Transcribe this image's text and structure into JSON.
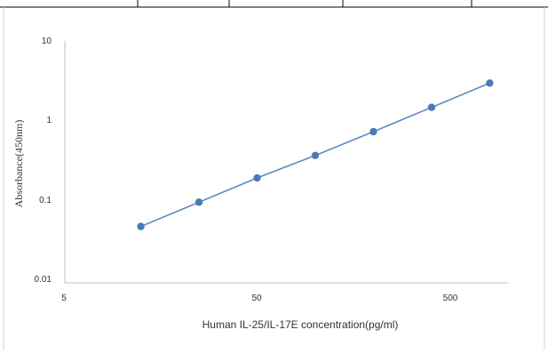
{
  "chart_data": {
    "type": "scatter",
    "xlabel": "Human IL-25/IL-17E concentration(pg/ml)",
    "ylabel": "Absorbance(450nm)",
    "x_scale": "log",
    "y_scale": "log",
    "xlim": [
      5,
      1000
    ],
    "ylim": [
      0.01,
      10
    ],
    "x_ticks": [
      "5",
      "50",
      "500"
    ],
    "x_tick_values": [
      5,
      50,
      500
    ],
    "y_ticks": [
      "10",
      "1",
      "0.1",
      "0.01"
    ],
    "y_tick_values": [
      10,
      1,
      0.1,
      0.01
    ],
    "grid": false,
    "legend": "none",
    "series": [
      {
        "color": "#4a7ab5",
        "x": [
          12.5,
          25,
          50,
          100,
          200,
          400,
          800
        ],
        "y": [
          0.05,
          0.1,
          0.2,
          0.38,
          0.75,
          1.5,
          3.0
        ]
      }
    ],
    "fit_line": {
      "color": "#5b8cc4"
    }
  }
}
